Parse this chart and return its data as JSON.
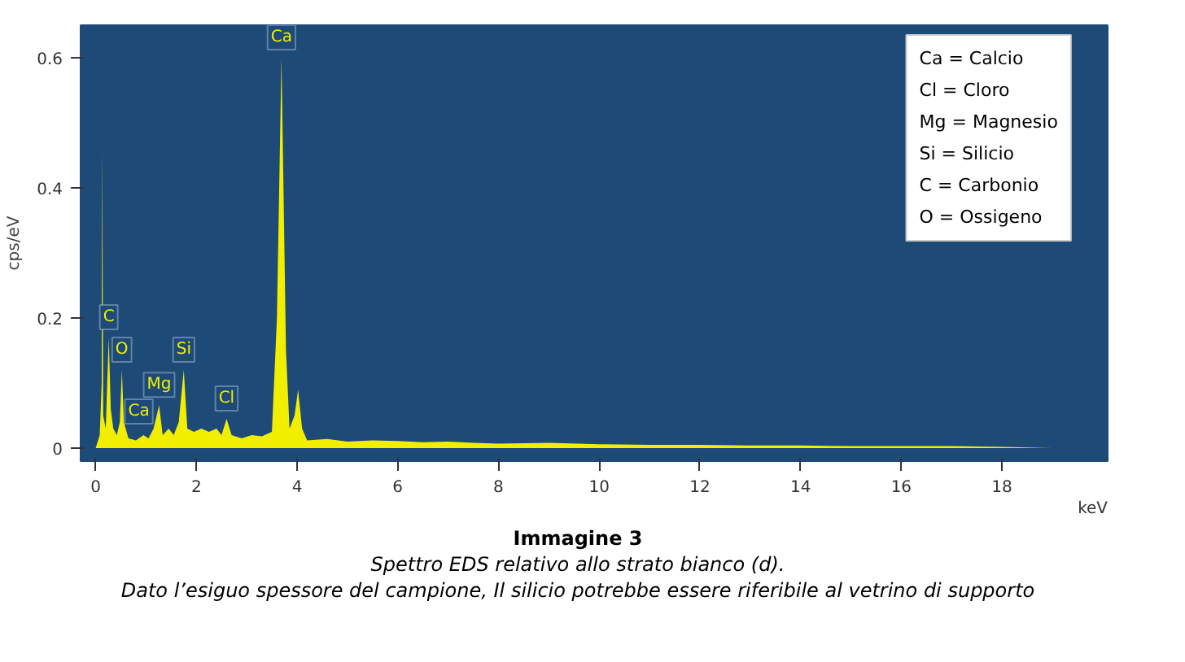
{
  "chart_data": {
    "type": "area",
    "title": "Immagine 3",
    "subtitle": "Spettro EDS relativo allo strato bianco (d).",
    "xlabel": "keV",
    "ylabel": "cps/eV",
    "x": [
      0.0,
      0.08,
      0.12,
      0.13,
      0.15,
      0.2,
      0.26,
      0.3,
      0.35,
      0.42,
      0.48,
      0.52,
      0.56,
      0.65,
      0.8,
      0.95,
      1.05,
      1.15,
      1.26,
      1.33,
      1.45,
      1.55,
      1.65,
      1.75,
      1.82,
      1.95,
      2.1,
      2.25,
      2.4,
      2.5,
      2.6,
      2.7,
      2.9,
      3.1,
      3.3,
      3.5,
      3.6,
      3.69,
      3.78,
      3.85,
      3.95,
      4.02,
      4.1,
      4.2,
      4.6,
      5.0,
      5.5,
      6.0,
      6.5,
      7.0,
      7.5,
      8.0,
      9.0,
      10.0,
      11.0,
      12.0,
      13.0,
      14.0,
      15.0,
      16.0,
      17.0,
      18.0,
      19.0
    ],
    "series": [
      {
        "color": "#f2ee00",
        "values": [
          0.0,
          0.02,
          0.1,
          0.46,
          0.05,
          0.03,
          0.17,
          0.06,
          0.03,
          0.02,
          0.04,
          0.12,
          0.04,
          0.015,
          0.012,
          0.02,
          0.015,
          0.03,
          0.066,
          0.02,
          0.03,
          0.02,
          0.04,
          0.12,
          0.03,
          0.025,
          0.03,
          0.025,
          0.03,
          0.02,
          0.045,
          0.02,
          0.015,
          0.02,
          0.018,
          0.025,
          0.2,
          0.6,
          0.15,
          0.03,
          0.05,
          0.09,
          0.03,
          0.012,
          0.014,
          0.01,
          0.012,
          0.011,
          0.009,
          0.01,
          0.008,
          0.007,
          0.008,
          0.006,
          0.005,
          0.005,
          0.004,
          0.004,
          0.003,
          0.003,
          0.003,
          0.002,
          0.0
        ]
      }
    ],
    "xlim": [
      -0.3,
      20.1
    ],
    "ylim": [
      -0.02,
      0.65
    ],
    "xticks": [
      0,
      2,
      4,
      6,
      8,
      10,
      12,
      14,
      16,
      18
    ],
    "yticks": [
      0,
      0.2,
      0.4,
      0.6
    ],
    "grid": false,
    "annotations": [
      {
        "text": "Ca",
        "x": 3.69,
        "y": 0.6
      },
      {
        "text": "C",
        "x": 0.26,
        "y": 0.17
      },
      {
        "text": "O",
        "x": 0.52,
        "y": 0.12
      },
      {
        "text": "Mg",
        "x": 1.26,
        "y": 0.066
      },
      {
        "text": "Si",
        "x": 1.75,
        "y": 0.12
      },
      {
        "text": "Cl",
        "x": 2.6,
        "y": 0.045
      },
      {
        "text": "Ca",
        "x": 0.34,
        "y": 0.03
      },
      "Ca = Calcio",
      "Cl = Cloro",
      "Mg = Magnesio",
      "Si = Silicio",
      "C = Carbonio",
      "O = Ossigeno",
      "Dato l’esiguo spessore del campione, Il silicio potrebbe essere riferibile al vetrino di supporto"
    ]
  }
}
